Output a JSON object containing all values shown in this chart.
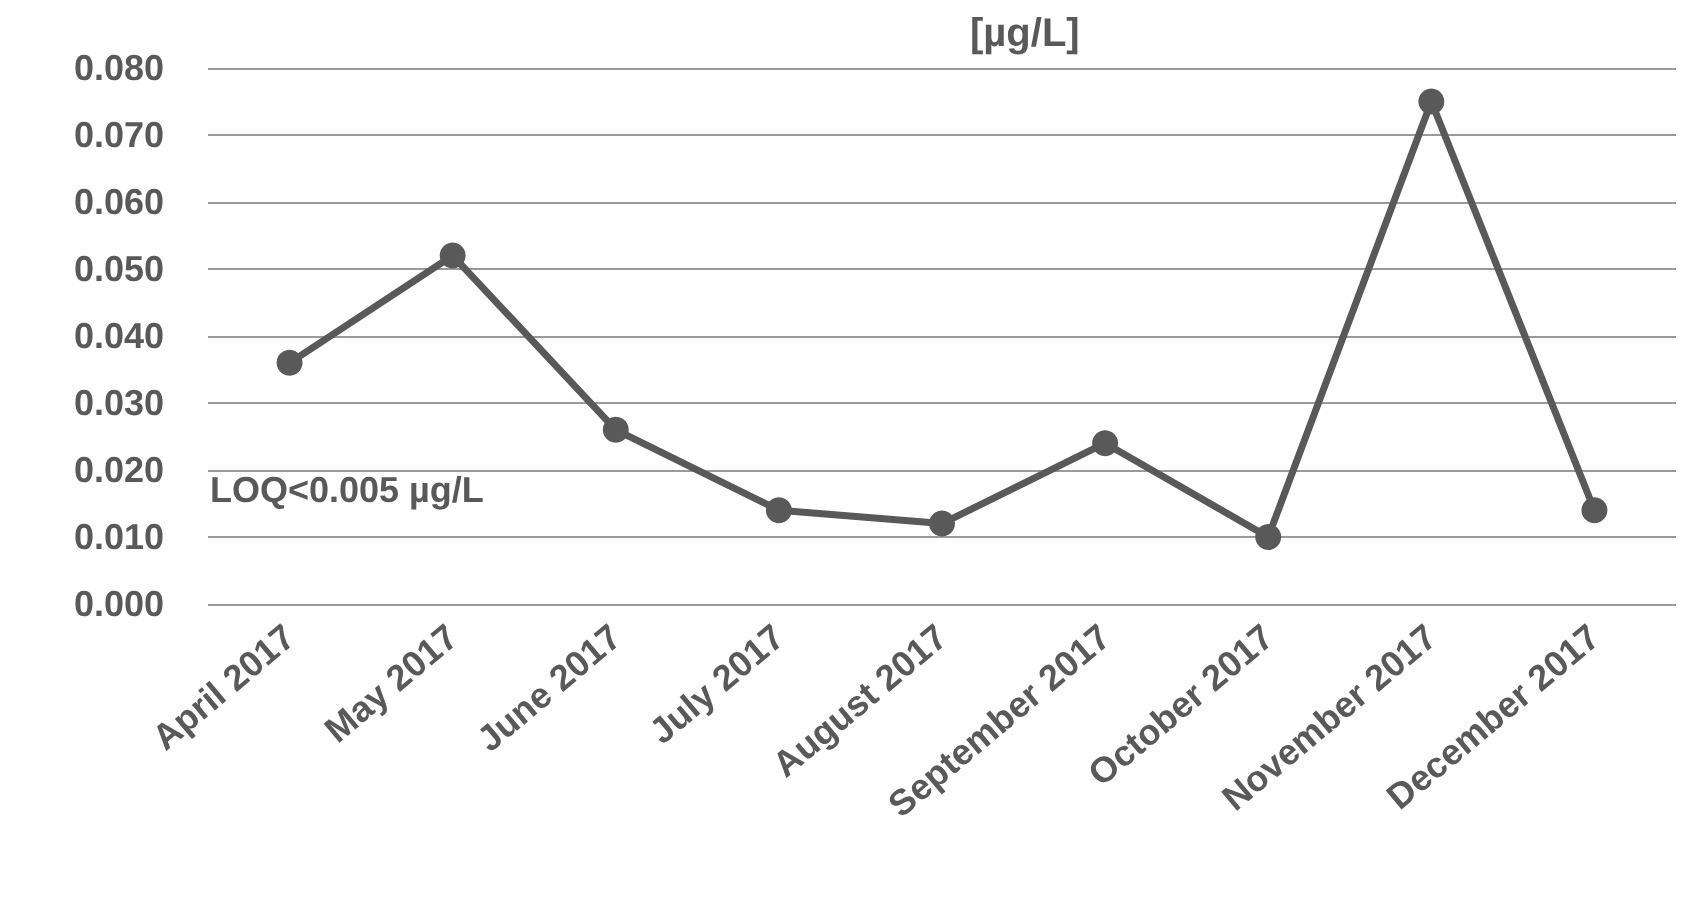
{
  "chart_data": {
    "type": "line",
    "title": "[µg/L]",
    "categories": [
      "April 2017",
      "May 2017",
      "June 2017",
      "July 2017",
      "August 2017",
      "September 2017",
      "October 2017",
      "November 2017",
      "December 2017"
    ],
    "series": [
      {
        "color": "#595959",
        "values": [
          0.036,
          0.052,
          0.026,
          0.014,
          0.012,
          0.024,
          0.01,
          0.075,
          0.014
        ]
      }
    ],
    "ylim": [
      0,
      0.08
    ],
    "yticks": [
      {
        "value": 0,
        "label": "0.000"
      },
      {
        "value": 0.01,
        "label": "0.010"
      },
      {
        "value": 0.02,
        "label": "0.020"
      },
      {
        "value": 0.03,
        "label": "0.030"
      },
      {
        "value": 0.04,
        "label": "0.040"
      },
      {
        "value": 0.05,
        "label": "0.050"
      },
      {
        "value": 0.06,
        "label": "0.060"
      },
      {
        "value": 0.07,
        "label": "0.070"
      },
      {
        "value": 0.08,
        "label": "0.080"
      }
    ],
    "grid": "y",
    "marker": "circle",
    "line_style": "solid",
    "annotations": [
      "LOQ<0.005 µg/L"
    ]
  }
}
